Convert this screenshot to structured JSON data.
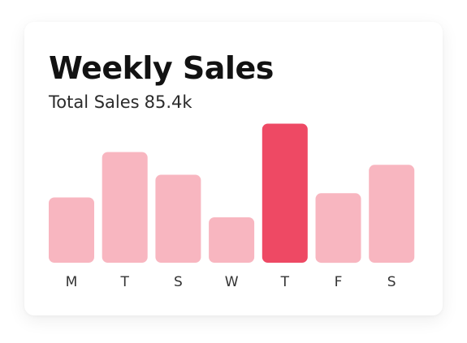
{
  "card": {
    "title": "Weekly Sales",
    "subtitle_label": "Total Sales",
    "subtitle_value": "85.4k"
  },
  "colors": {
    "bar": "#f8b6c0",
    "highlight": "#ee4964",
    "text": "#121212"
  },
  "chart_data": {
    "type": "bar",
    "title": "Weekly Sales",
    "subtitle": "Total Sales 85.4k",
    "categories": [
      "M",
      "T",
      "S",
      "W",
      "T",
      "F",
      "S"
    ],
    "values": [
      46,
      78,
      62,
      32,
      98,
      49,
      69
    ],
    "highlight_index": 4,
    "ylim": [
      0,
      100
    ],
    "grid": false,
    "legend": "none"
  }
}
